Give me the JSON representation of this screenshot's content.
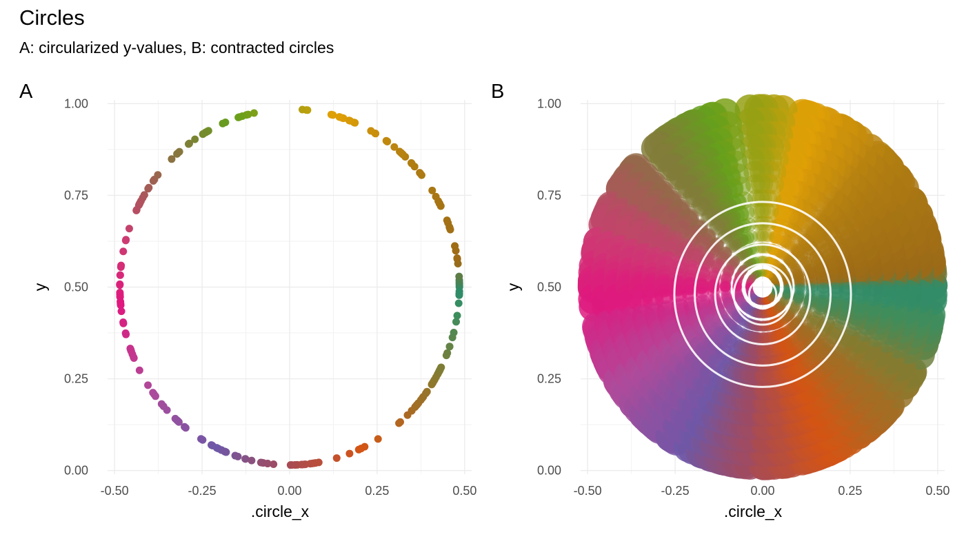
{
  "title": "Circles",
  "subtitle": "A: circularized y-values, B: contracted circles",
  "palette": [
    "#E7298A",
    "#7570B3",
    "#D95F02",
    "#1B9E77",
    "#A6761D",
    "#E6AB02",
    "#66A61E",
    "#A6A61E"
  ],
  "chart_data": [
    {
      "type": "scatter",
      "tag": "A",
      "xlabel": ".circle_x",
      "ylabel": "y",
      "xlim": [
        -0.52,
        0.52
      ],
      "ylim": [
        -0.01,
        1.01
      ],
      "x_ticks": [
        -0.5,
        -0.25,
        0,
        0.25,
        0.5
      ],
      "x_tick_labels": [
        "-0.50",
        "-0.25",
        "0.00",
        "0.25",
        "0.50"
      ],
      "y_ticks": [
        0,
        0.25,
        0.5,
        0.75,
        1
      ],
      "y_tick_labels": [
        "0.00",
        "0.25",
        "0.50",
        "0.75",
        "1.00"
      ],
      "grid": true,
      "circle": {
        "center_x": 0,
        "center_y": 0.5,
        "radius": 0.485,
        "n_points": 240
      },
      "gap_at_top": true
    },
    {
      "type": "scatter",
      "tag": "B",
      "xlabel": ".circle_x",
      "ylabel": "y",
      "xlim": [
        -0.52,
        0.52
      ],
      "ylim": [
        -0.01,
        1.01
      ],
      "x_ticks": [
        -0.5,
        -0.25,
        0,
        0.25,
        0.5
      ],
      "x_tick_labels": [
        "-0.50",
        "-0.25",
        "0.00",
        "0.25",
        "0.50"
      ],
      "y_ticks": [
        0,
        0.25,
        0.5,
        0.75,
        1
      ],
      "y_tick_labels": [
        "0.00",
        "0.25",
        "0.50",
        "0.75",
        "1.00"
      ],
      "grid": true,
      "circle": {
        "center_x": 0,
        "center_y": 0.5,
        "radius": 0.485,
        "n_points": 240
      },
      "contraction_levels": [
        1.0,
        0.93,
        0.86,
        0.79,
        0.72,
        0.65,
        0.58,
        0.5,
        0.43,
        0.36,
        0.29,
        0.22,
        0.15,
        0.08
      ],
      "marker_size_range": [
        4,
        22
      ]
    }
  ]
}
